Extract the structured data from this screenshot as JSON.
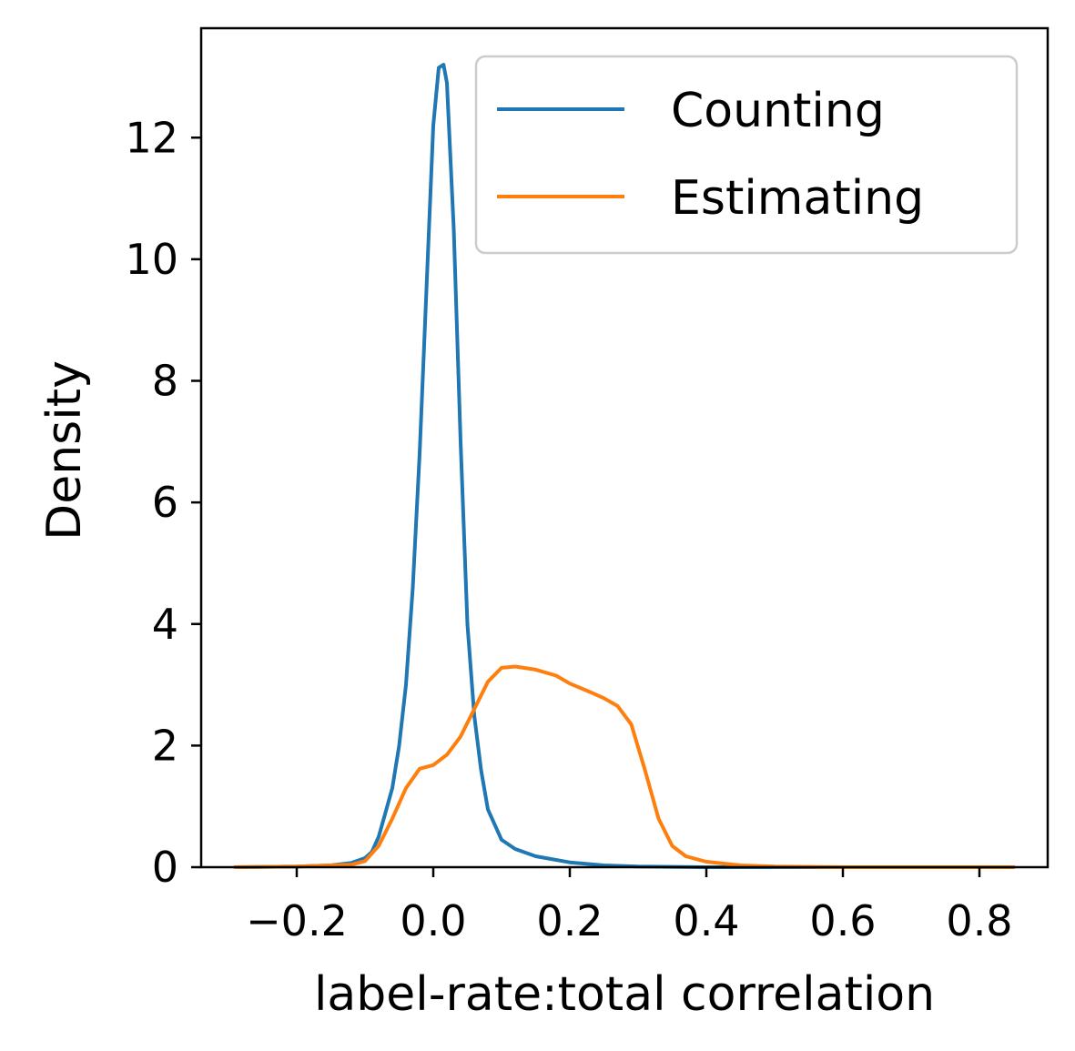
{
  "chart_data": {
    "type": "line",
    "title": "",
    "xlabel": "label-rate:total correlation",
    "ylabel": "Density",
    "xlim": [
      -0.34,
      0.9
    ],
    "ylim": [
      0,
      13.8
    ],
    "xticks": [
      {
        "value": -0.2,
        "label": "−0.2"
      },
      {
        "value": 0.0,
        "label": "0.0"
      },
      {
        "value": 0.2,
        "label": "0.2"
      },
      {
        "value": 0.4,
        "label": "0.4"
      },
      {
        "value": 0.6,
        "label": "0.6"
      },
      {
        "value": 0.8,
        "label": "0.8"
      }
    ],
    "yticks": [
      {
        "value": 0,
        "label": "0"
      },
      {
        "value": 2,
        "label": "2"
      },
      {
        "value": 4,
        "label": "4"
      },
      {
        "value": 6,
        "label": "6"
      },
      {
        "value": 8,
        "label": "8"
      },
      {
        "value": 10,
        "label": "10"
      },
      {
        "value": 12,
        "label": "12"
      }
    ],
    "grid": false,
    "legend": "top-right",
    "series": [
      {
        "name": "Counting",
        "color": "#1f77b4",
        "points": [
          [
            -0.29,
            0.0
          ],
          [
            -0.2,
            0.01
          ],
          [
            -0.15,
            0.03
          ],
          [
            -0.12,
            0.07
          ],
          [
            -0.1,
            0.15
          ],
          [
            -0.09,
            0.25
          ],
          [
            -0.08,
            0.5
          ],
          [
            -0.07,
            0.9
          ],
          [
            -0.06,
            1.3
          ],
          [
            -0.05,
            2.0
          ],
          [
            -0.04,
            3.0
          ],
          [
            -0.03,
            4.6
          ],
          [
            -0.02,
            6.8
          ],
          [
            -0.01,
            9.5
          ],
          [
            0.0,
            12.2
          ],
          [
            0.008,
            13.15
          ],
          [
            0.015,
            13.2
          ],
          [
            0.02,
            12.9
          ],
          [
            0.03,
            10.5
          ],
          [
            0.04,
            7.0
          ],
          [
            0.05,
            4.0
          ],
          [
            0.06,
            2.5
          ],
          [
            0.07,
            1.6
          ],
          [
            0.08,
            0.95
          ],
          [
            0.09,
            0.7
          ],
          [
            0.1,
            0.45
          ],
          [
            0.12,
            0.3
          ],
          [
            0.15,
            0.18
          ],
          [
            0.2,
            0.08
          ],
          [
            0.25,
            0.03
          ],
          [
            0.3,
            0.01
          ],
          [
            0.4,
            0.0
          ],
          [
            0.6,
            0.0
          ],
          [
            0.85,
            0.0
          ]
        ]
      },
      {
        "name": "Estimating",
        "color": "#ff7f0e",
        "points": [
          [
            -0.29,
            0.0
          ],
          [
            -0.2,
            0.01
          ],
          [
            -0.12,
            0.04
          ],
          [
            -0.1,
            0.1
          ],
          [
            -0.08,
            0.35
          ],
          [
            -0.06,
            0.8
          ],
          [
            -0.04,
            1.3
          ],
          [
            -0.02,
            1.62
          ],
          [
            0.0,
            1.68
          ],
          [
            0.02,
            1.85
          ],
          [
            0.04,
            2.15
          ],
          [
            0.06,
            2.6
          ],
          [
            0.08,
            3.05
          ],
          [
            0.1,
            3.28
          ],
          [
            0.12,
            3.3
          ],
          [
            0.15,
            3.25
          ],
          [
            0.18,
            3.15
          ],
          [
            0.2,
            3.02
          ],
          [
            0.23,
            2.88
          ],
          [
            0.25,
            2.78
          ],
          [
            0.27,
            2.65
          ],
          [
            0.29,
            2.35
          ],
          [
            0.31,
            1.6
          ],
          [
            0.33,
            0.8
          ],
          [
            0.35,
            0.35
          ],
          [
            0.37,
            0.18
          ],
          [
            0.4,
            0.09
          ],
          [
            0.45,
            0.03
          ],
          [
            0.5,
            0.01
          ],
          [
            0.6,
            0.0
          ],
          [
            0.85,
            0.0
          ]
        ]
      }
    ]
  }
}
